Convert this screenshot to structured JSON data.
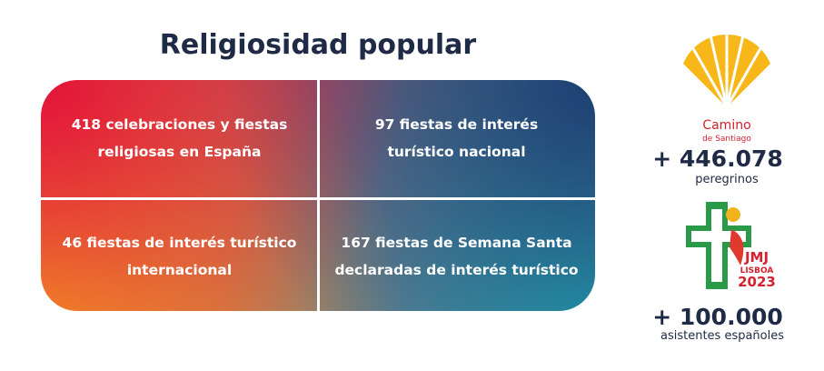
{
  "header": {
    "title": "Religiosidad popular"
  },
  "cells": [
    {
      "lines": [
        "418 celebraciones y fiestas",
        "religiosas en España"
      ]
    },
    {
      "lines": [
        "97 fiestas de interés",
        "turístico nacional"
      ]
    },
    {
      "lines": [
        "46 fiestas de interés turístico",
        "internacional"
      ]
    },
    {
      "lines": [
        "167 fiestas de Semana Santa",
        "declaradas de interés turístico"
      ]
    }
  ],
  "camino": {
    "logo": [
      "Camino",
      "de Santiago"
    ],
    "number": "+ 446.078",
    "caption": "peregrinos"
  },
  "jmj": {
    "logo": [
      "JMJ",
      "LISBOA",
      "2023"
    ],
    "number": "+ 100.000",
    "caption": "asistentes españoles"
  }
}
